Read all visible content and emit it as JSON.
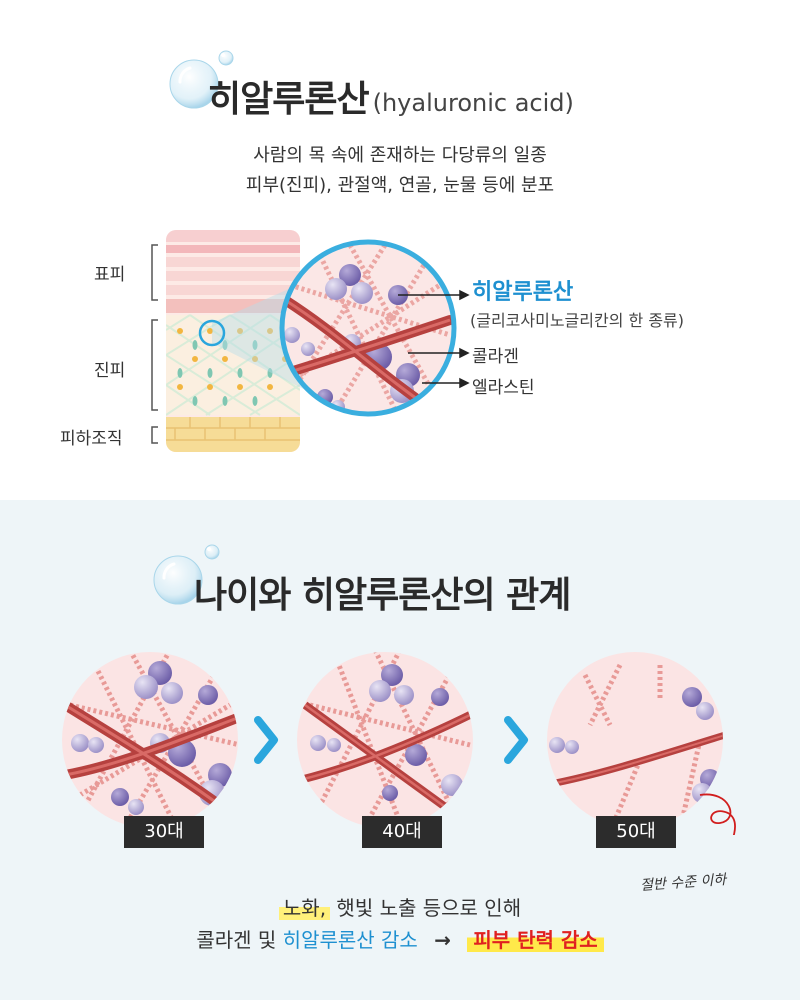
{
  "section1": {
    "title": "히알루론산",
    "title_sub": "(hyaluronic acid)",
    "desc_line1": "사람의  목 속에 존재하는 다당류의 일종",
    "desc_line2": "피부(진피), 관절액, 연골, 눈물 등에 분포",
    "layers": {
      "epidermis": "표피",
      "dermis": "진피",
      "subcutis": "피하조직"
    },
    "callouts": {
      "hyaluronic": "히알루론산",
      "hyaluronic_sub": "(글리코사미노글리칸의 한 종류)",
      "collagen": "콜라겐",
      "elastin": "엘라스틴"
    }
  },
  "section2": {
    "title": "나이와 히알루론산의 관계",
    "ages": [
      "30대",
      "40대",
      "50대"
    ],
    "note": "절반 수준 이하",
    "line1_highlight": "노화,",
    "line1_rest": " 햇빛 노출 등으로 인해",
    "line2_prefix": "콜라겐 및 ",
    "line2_blue": "히알루론산 감소",
    "line2_arrow": "→",
    "line2_red": "피부 탄력 감소"
  },
  "colors": {
    "accent_blue": "#1e90d0",
    "accent_red": "#e02020",
    "highlight_yellow": "#fff07a",
    "badge_dark": "#2c2c2c",
    "bottom_bg": "#eef5f8"
  }
}
